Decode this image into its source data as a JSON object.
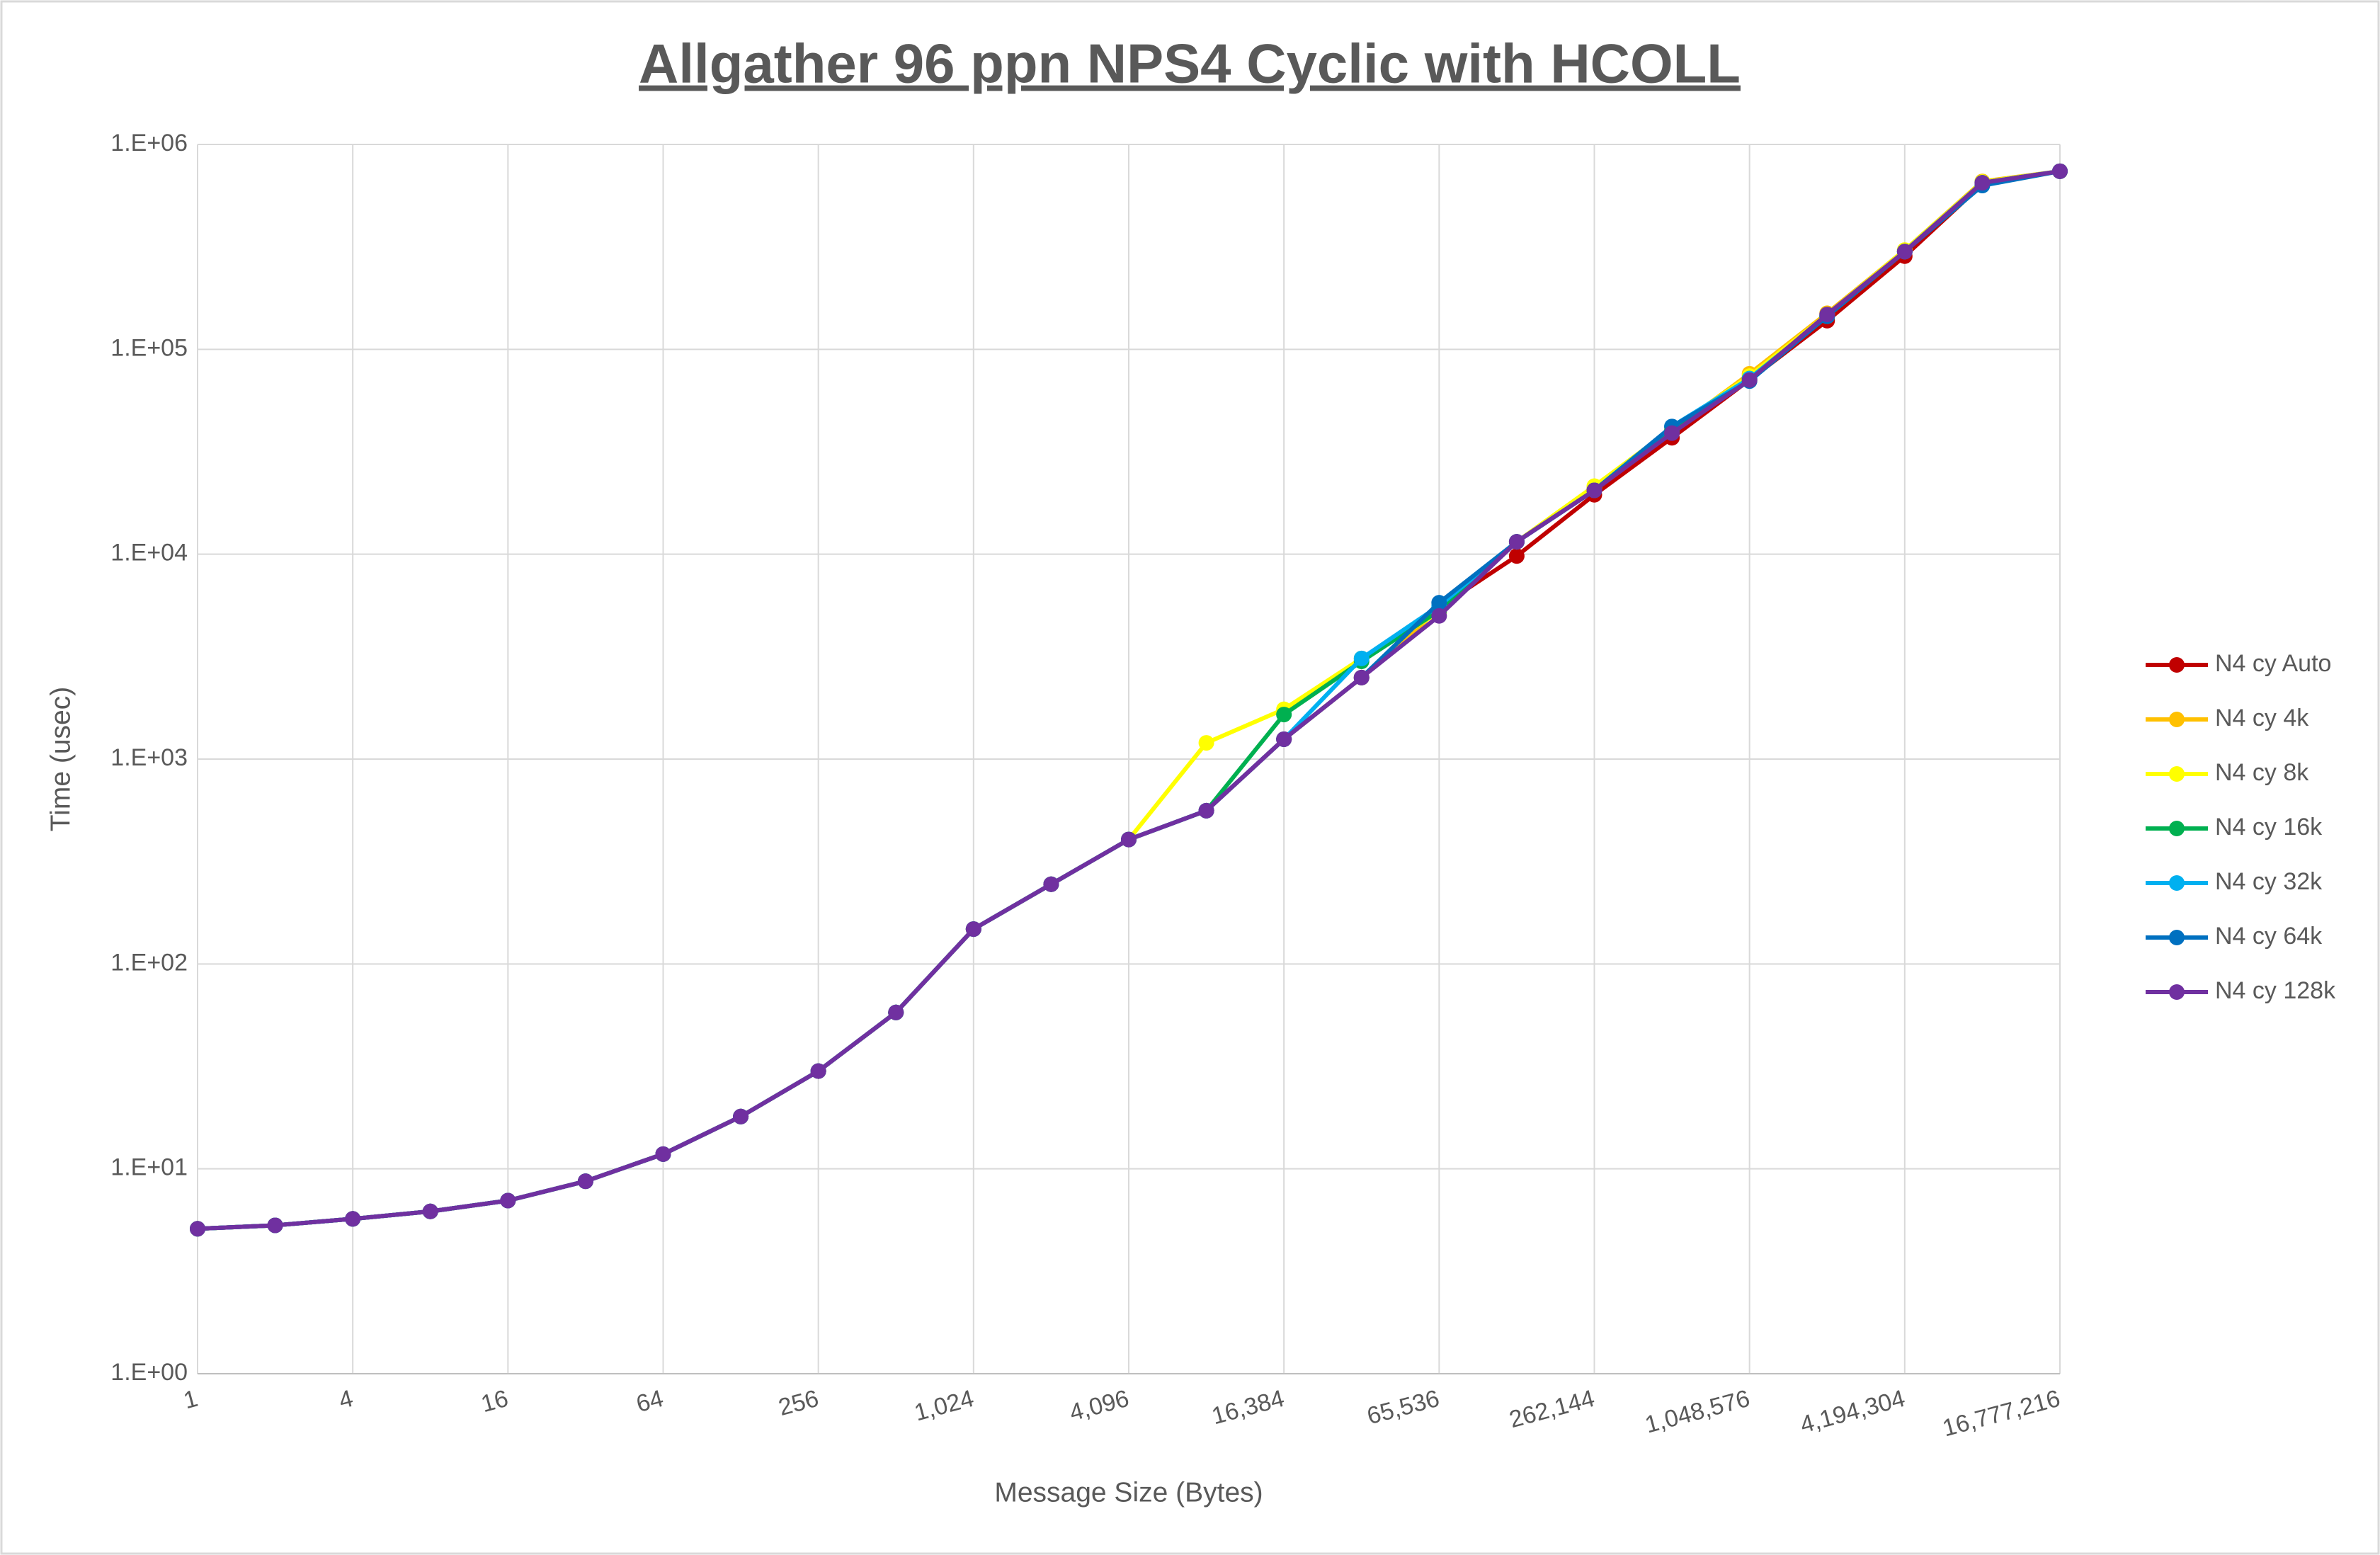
{
  "chart_data": {
    "type": "line",
    "title": "Allgather 96 ppn NPS4 Cyclic with HCOLL",
    "x_label": "Message Size (Bytes)",
    "y_label": "Time (usec)",
    "x": [
      1,
      2,
      4,
      8,
      16,
      32,
      64,
      128,
      256,
      512,
      1024,
      2048,
      4096,
      8192,
      16384,
      32768,
      65536,
      131072,
      262144,
      524288,
      1048576,
      2097152,
      4194304,
      8388608,
      16777216
    ],
    "x_log_base": 2,
    "y_log_base": 10,
    "xlim": [
      1,
      16777216
    ],
    "xticks": [
      1,
      4,
      16,
      64,
      256,
      {
        "value": 1024,
        "label": "1,024"
      },
      {
        "value": 4096,
        "label": "4,096"
      },
      {
        "value": 16384,
        "label": "16,384"
      },
      {
        "value": 65536,
        "label": "65,536"
      },
      {
        "value": 262144,
        "label": "262,144"
      },
      {
        "value": 1048576,
        "label": "1,048,576"
      },
      {
        "value": 4194304,
        "label": "4,194,304"
      },
      {
        "value": 16777216,
        "label": "16,777,216"
      }
    ],
    "ylim": [
      1,
      1000000
    ],
    "yticks": [
      {
        "value": 1,
        "label": "1.E+00"
      },
      {
        "value": 10,
        "label": "1.E+01"
      },
      {
        "value": 100,
        "label": "1.E+02"
      },
      {
        "value": 1000,
        "label": "1.E+03"
      },
      {
        "value": 10000,
        "label": "1.E+04"
      },
      {
        "value": 100000,
        "label": "1.E+05"
      },
      {
        "value": 1000000,
        "label": "1.E+06"
      }
    ],
    "grid": true,
    "legend": "right",
    "series": [
      {
        "name": "N4 cy Auto",
        "color": "#c00000",
        "values": [
          5.1,
          5.3,
          5.7,
          6.2,
          7.0,
          8.7,
          11.8,
          18,
          30,
          58,
          148,
          245,
          405,
          560,
          1250,
          2500,
          5500,
          9800,
          19500,
          37000,
          71000,
          138000,
          285000,
          640000,
          740000
        ]
      },
      {
        "name": "N4 cy 4k",
        "color": "#ffc000",
        "values": [
          5.1,
          5.3,
          5.7,
          6.2,
          7.0,
          8.7,
          11.8,
          18,
          30,
          58,
          148,
          245,
          405,
          560,
          1250,
          2500,
          5400,
          11500,
          21000,
          40000,
          76000,
          150000,
          305000,
          660000,
          740000
        ]
      },
      {
        "name": "N4 cy 8k",
        "color": "#ffff00",
        "values": [
          5.1,
          5.3,
          5.7,
          6.2,
          7.0,
          8.7,
          11.8,
          18,
          30,
          58,
          148,
          245,
          405,
          1200,
          1750,
          3100,
          5200,
          11500,
          21500,
          41000,
          74000,
          148000,
          305000,
          655000,
          740000
        ]
      },
      {
        "name": "N4 cy 16k",
        "color": "#00b050",
        "values": [
          5.1,
          5.3,
          5.7,
          6.2,
          7.0,
          8.7,
          11.8,
          18,
          30,
          58,
          148,
          245,
          405,
          560,
          1650,
          3000,
          5300,
          11500,
          20500,
          40000,
          72000,
          145000,
          300000,
          650000,
          740000
        ]
      },
      {
        "name": "N4 cy 32k",
        "color": "#00b0f0",
        "values": [
          5.1,
          5.3,
          5.7,
          6.2,
          7.0,
          8.7,
          11.8,
          18,
          30,
          58,
          148,
          245,
          405,
          560,
          1250,
          3100,
          5600,
          11500,
          20500,
          42000,
          72000,
          145000,
          300000,
          650000,
          740000
        ]
      },
      {
        "name": "N4 cy 64k",
        "color": "#0070c0",
        "values": [
          5.1,
          5.3,
          5.7,
          6.2,
          7.0,
          8.7,
          11.8,
          18,
          30,
          58,
          148,
          245,
          405,
          560,
          1250,
          2500,
          5800,
          11500,
          20500,
          42000,
          70000,
          145000,
          300000,
          630000,
          740000
        ]
      },
      {
        "name": "N4 cy 128k",
        "color": "#7030a0",
        "values": [
          5.1,
          5.3,
          5.7,
          6.2,
          7.0,
          8.7,
          11.8,
          18,
          30,
          58,
          148,
          245,
          405,
          560,
          1250,
          2500,
          5000,
          11500,
          20500,
          39000,
          70800,
          148000,
          300000,
          650000,
          740000
        ]
      }
    ]
  }
}
